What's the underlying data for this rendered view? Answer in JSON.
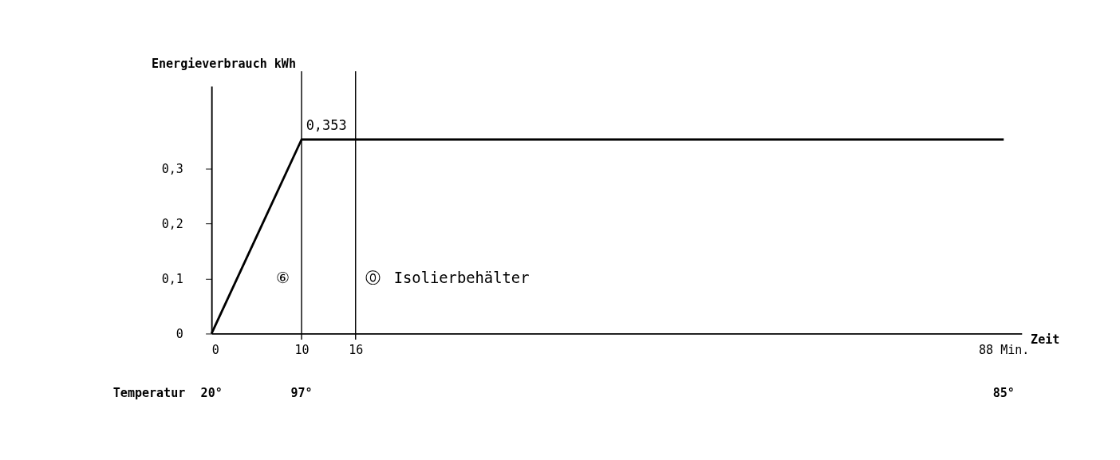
{
  "chart_data": {
    "type": "line",
    "color": "#000000",
    "xlabel": "Zeit",
    "ylabel": "Energieverbrauch kWh",
    "x": [
      0,
      10,
      16,
      88
    ],
    "values": [
      0,
      0.353,
      0.353,
      0.353
    ],
    "xlim": [
      0,
      90
    ],
    "xticks": [
      0,
      10,
      16,
      {
        "value": 88,
        "label": "88 Min."
      }
    ],
    "ylim": [
      0,
      0.45
    ],
    "yticks": [
      {
        "value": 0,
        "label": "0"
      },
      {
        "value": 0.1,
        "label": "0,1"
      },
      {
        "value": 0.2,
        "label": "0,2"
      },
      {
        "value": 0.3,
        "label": "0,3"
      }
    ],
    "ref_lines": [
      {
        "axis": "x",
        "value": 10
      },
      {
        "axis": "x",
        "value": 16
      }
    ],
    "annotations": [
      {
        "text": "0,353",
        "x": 10,
        "y": 0.353
      },
      "⑥",
      "⓪",
      "Isolierbehälter",
      "Temperatur",
      "20°",
      "97°",
      "85°"
    ],
    "grid": false,
    "marker": "none",
    "line_style": "solid"
  }
}
